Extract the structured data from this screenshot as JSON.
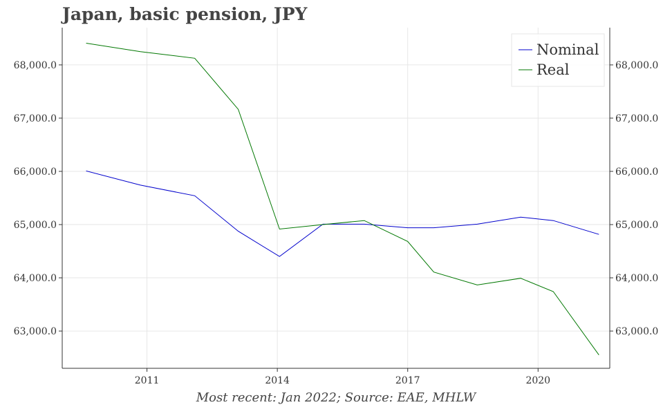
{
  "chart_data": {
    "type": "line",
    "title": "Japan, basic pension, JPY",
    "footer": "Most recent: Jan 2022; Source: EAE, MHLW",
    "x": [
      2009.6,
      2010.85,
      2012.1,
      2013.1,
      2014.05,
      2015.05,
      2016.0,
      2017.0,
      2017.6,
      2018.6,
      2019.6,
      2020.35,
      2021.4
    ],
    "series": [
      {
        "name": "Nominal",
        "color": "#0000cc",
        "values": [
          66008,
          65741,
          65541,
          64875,
          64400,
          65008,
          65008,
          64941,
          64941,
          65008,
          65141,
          65075,
          64816
        ]
      },
      {
        "name": "Real",
        "color": "#007700",
        "values": [
          68408,
          68250,
          68125,
          67166,
          64916,
          65000,
          65075,
          64683,
          64108,
          63866,
          63991,
          63741,
          62550
        ]
      }
    ],
    "x_ticks": [
      2011,
      2014,
      2017,
      2020
    ],
    "x_tick_labels": [
      "2011",
      "2014",
      "2017",
      "2020"
    ],
    "y_ticks": [
      63000,
      64000,
      65000,
      66000,
      67000,
      68000
    ],
    "y_tick_labels": [
      "63,000.0",
      "64,000.0",
      "65,000.0",
      "66,000.0",
      "67,000.0",
      "68,000.0"
    ],
    "xlim": [
      2009.05,
      2021.65
    ],
    "ylim": [
      62300,
      68700
    ],
    "grid": true,
    "legend_position": "top-right",
    "dual_y_axis": true
  }
}
